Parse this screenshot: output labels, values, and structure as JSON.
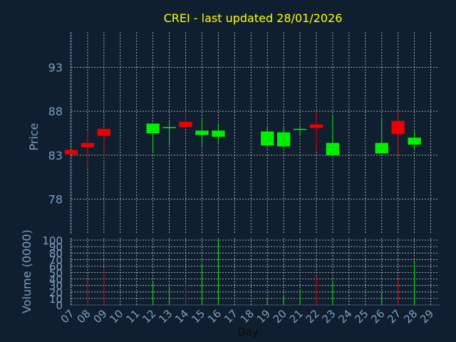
{
  "chart_data": {
    "type": "candlestick",
    "title": "CREI - last updated 28/01/2026",
    "xlabel": "Day",
    "price_panel": {
      "ylabel": "Price",
      "ylim": [
        74,
        97
      ],
      "yticks": [
        78,
        83,
        88,
        93
      ]
    },
    "volume_panel": {
      "ylabel": "Volume (0000)",
      "ylim": [
        0,
        100
      ],
      "yticks": [
        0,
        10,
        20,
        30,
        40,
        50,
        60,
        70,
        80,
        90,
        100
      ]
    },
    "days": [
      "07",
      "08",
      "09",
      "10",
      "11",
      "12",
      "13",
      "14",
      "15",
      "16",
      "17",
      "18",
      "19",
      "20",
      "21",
      "22",
      "23",
      "24",
      "25",
      "26",
      "27",
      "28",
      "29"
    ],
    "candles": [
      {
        "day": "07",
        "open": 83.6,
        "close": 83.1,
        "high": 83.6,
        "low": 83.1,
        "volume": 0
      },
      {
        "day": "08",
        "open": 84.4,
        "close": 83.9,
        "high": 85.8,
        "low": 81.5,
        "volume": 36
      },
      {
        "day": "09",
        "open": 86.0,
        "close": 85.2,
        "high": 86.0,
        "low": 82.9,
        "volume": 55
      },
      {
        "day": "12",
        "open": 85.5,
        "close": 86.6,
        "high": 86.6,
        "low": 83.3,
        "volume": 35
      },
      {
        "day": "13",
        "open": 86.1,
        "close": 86.2,
        "high": 87.0,
        "low": 84.1,
        "volume": 28
      },
      {
        "day": "14",
        "open": 86.8,
        "close": 86.2,
        "high": 88.0,
        "low": 86.2,
        "volume": 32
      },
      {
        "day": "15",
        "open": 85.3,
        "close": 85.8,
        "high": 87.1,
        "low": 84.0,
        "volume": 64
      },
      {
        "day": "16",
        "open": 85.1,
        "close": 85.8,
        "high": 86.6,
        "low": 84.4,
        "volume": 100
      },
      {
        "day": "19",
        "open": 84.1,
        "close": 85.7,
        "high": 86.3,
        "low": 84.1,
        "volume": 11
      },
      {
        "day": "20",
        "open": 84.0,
        "close": 85.6,
        "high": 86.3,
        "low": 84.0,
        "volume": 14
      },
      {
        "day": "21",
        "open": 85.9,
        "close": 86.0,
        "high": 86.4,
        "low": 85.3,
        "volume": 23
      },
      {
        "day": "22",
        "open": 86.5,
        "close": 86.1,
        "high": 87.9,
        "low": 83.4,
        "volume": 44
      },
      {
        "day": "23",
        "open": 83.0,
        "close": 84.4,
        "high": 87.5,
        "low": 83.0,
        "volume": 38
      },
      {
        "day": "26",
        "open": 83.2,
        "close": 84.4,
        "high": 87.3,
        "low": 83.2,
        "volume": 18
      },
      {
        "day": "27",
        "open": 86.9,
        "close": 85.4,
        "high": 88.0,
        "low": 83.0,
        "volume": 40
      },
      {
        "day": "28",
        "open": 84.2,
        "close": 85.0,
        "high": 85.8,
        "low": 83.6,
        "volume": 66
      }
    ],
    "colors": {
      "background": "#0f1f2f",
      "up": "#00ee00",
      "down": "#ee0000",
      "grid": "#c8c8c8",
      "axis_text": "#7d9ec0",
      "title": "#ffff00"
    }
  }
}
